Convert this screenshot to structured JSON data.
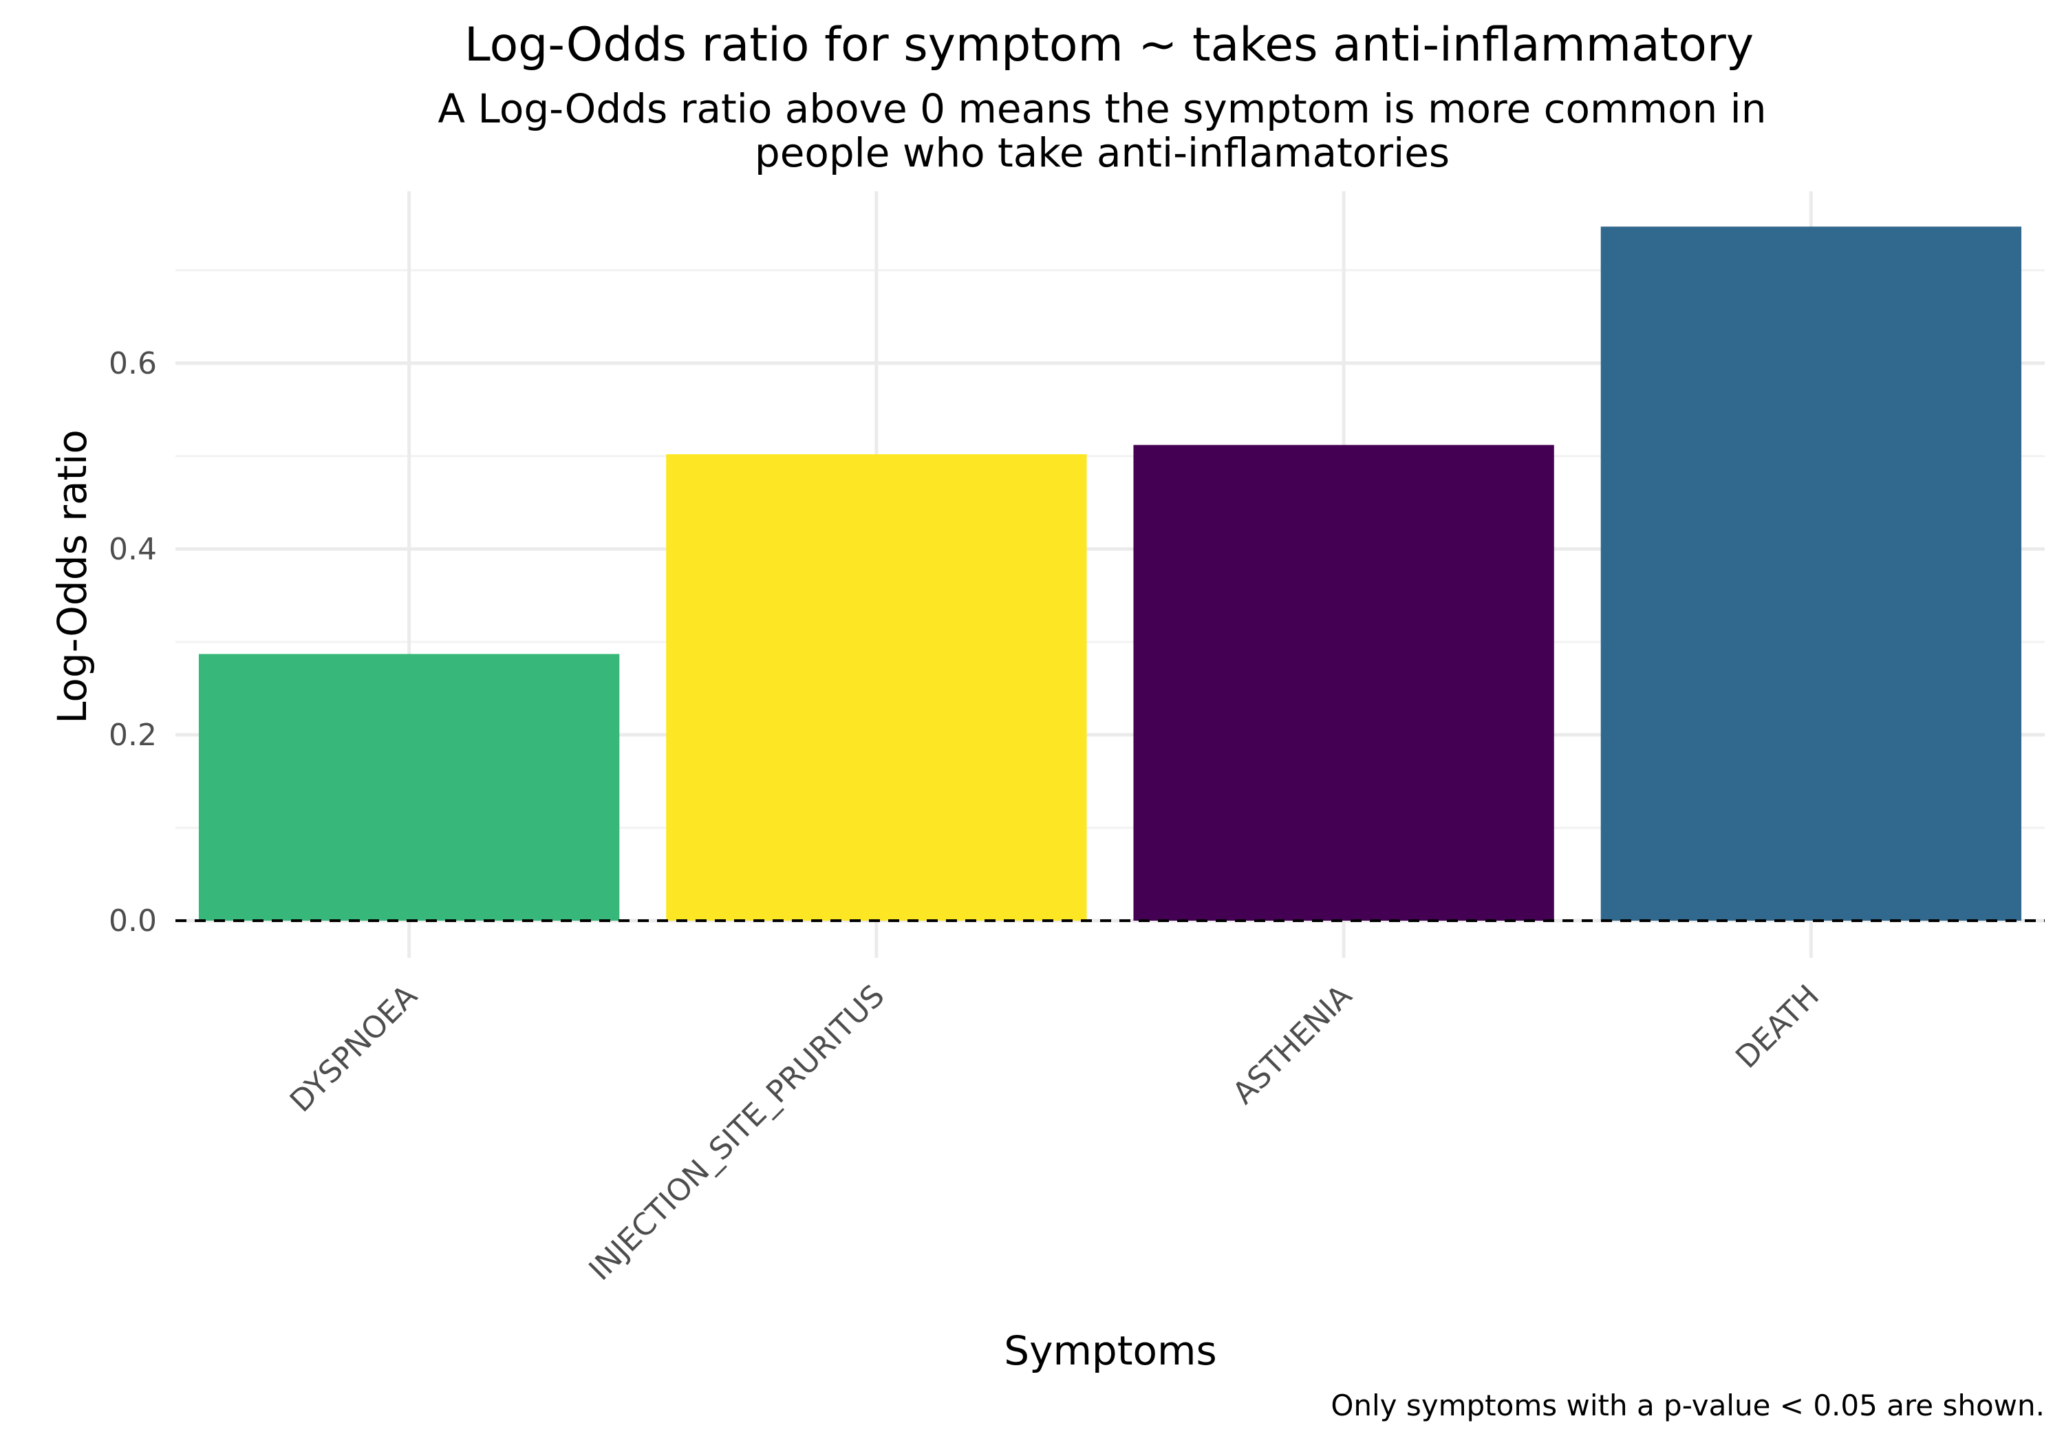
{
  "chart_data": {
    "type": "bar",
    "title": "Log-Odds ratio for symptom ~ takes anti-inflammatory",
    "subtitle": [
      "A Log-Odds ratio above 0 means the symptom is more common in",
      "people who take anti-inflamatories"
    ],
    "xlabel": "Symptoms",
    "ylabel": "Log-Odds ratio",
    "caption": "Only symptoms with a p-value < 0.05 are shown.",
    "categories": [
      "DYSPNOEA",
      "INJECTION_SITE_PRURITUS",
      "ASTHENIA",
      "DEATH"
    ],
    "values": [
      0.287,
      0.502,
      0.512,
      0.747
    ],
    "colors": [
      "#37b779",
      "#fde725",
      "#440154",
      "#31688e"
    ],
    "ylim": [
      -0.04,
      0.785
    ],
    "yticks": [
      0.0,
      0.2,
      0.4,
      0.6
    ],
    "ytick_labels": [
      "0.0",
      "0.2",
      "0.4",
      "0.6"
    ],
    "minor_yticks": [
      0.1,
      0.3,
      0.5,
      0.7
    ],
    "reference_line": {
      "y": 0,
      "style": "dashed",
      "color": "#000000"
    },
    "grid": true,
    "legend": "none"
  }
}
